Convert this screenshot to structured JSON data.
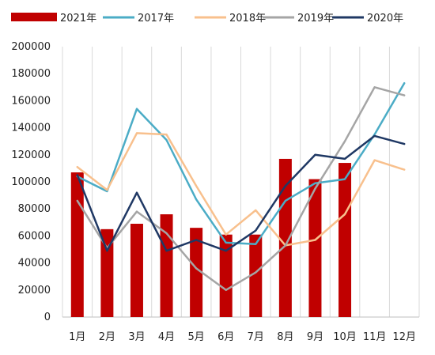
{
  "chart_data": {
    "type": "bar+line",
    "categories": [
      "1月",
      "2月",
      "3月",
      "4月",
      "5月",
      "6月",
      "7月",
      "8月",
      "9月",
      "10月",
      "11月",
      "12月"
    ],
    "ylim": [
      0,
      200000
    ],
    "yticks": [
      "200000",
      "180000",
      "160000",
      "140000",
      "120000",
      "100000",
      "80000",
      "60000",
      "40000",
      "20000",
      "0"
    ],
    "grid": "vertical",
    "legend_position": "top",
    "bar_series": {
      "name": "2021年",
      "color": "#c00000",
      "values": [
        107000,
        65000,
        69000,
        76000,
        66000,
        61000,
        61000,
        117000,
        102000,
        114000,
        null,
        null
      ]
    },
    "line_series": [
      {
        "name": "2017年",
        "color": "#4bacc6",
        "values": [
          104000,
          93000,
          154000,
          131000,
          87000,
          55000,
          54000,
          86000,
          99000,
          102000,
          135000,
          173000
        ]
      },
      {
        "name": "2018年",
        "color": "#f8c08d",
        "values": [
          111000,
          94000,
          136000,
          135000,
          97000,
          61000,
          79000,
          53000,
          57000,
          76000,
          116000,
          109000
        ]
      },
      {
        "name": "2019年",
        "color": "#a5a5a5",
        "values": [
          86000,
          51000,
          78000,
          62000,
          36000,
          20000,
          33000,
          53000,
          95000,
          130000,
          170000,
          164000
        ]
      },
      {
        "name": "2020年",
        "color": "#1f3864",
        "values": [
          105000,
          49000,
          92000,
          49000,
          57000,
          49000,
          64000,
          97000,
          120000,
          117000,
          134000,
          128000
        ]
      }
    ]
  }
}
